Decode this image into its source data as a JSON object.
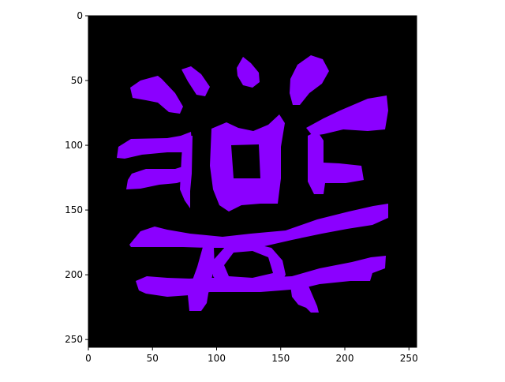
{
  "chart_data": {
    "type": "heatmap",
    "title": "",
    "xlabel": "",
    "ylabel": "",
    "xlim": [
      0,
      256
    ],
    "ylim": [
      256,
      0
    ],
    "x_ticks": [
      0,
      50,
      100,
      150,
      200,
      250
    ],
    "y_ticks": [
      0,
      50,
      100,
      150,
      200,
      250
    ],
    "image_shape": [
      256,
      256
    ],
    "grid": false,
    "background_color": "#000000",
    "foreground_color": "#8b00ff",
    "description_of_content": "binary mask of a stylized glyph (purple on black)"
  }
}
